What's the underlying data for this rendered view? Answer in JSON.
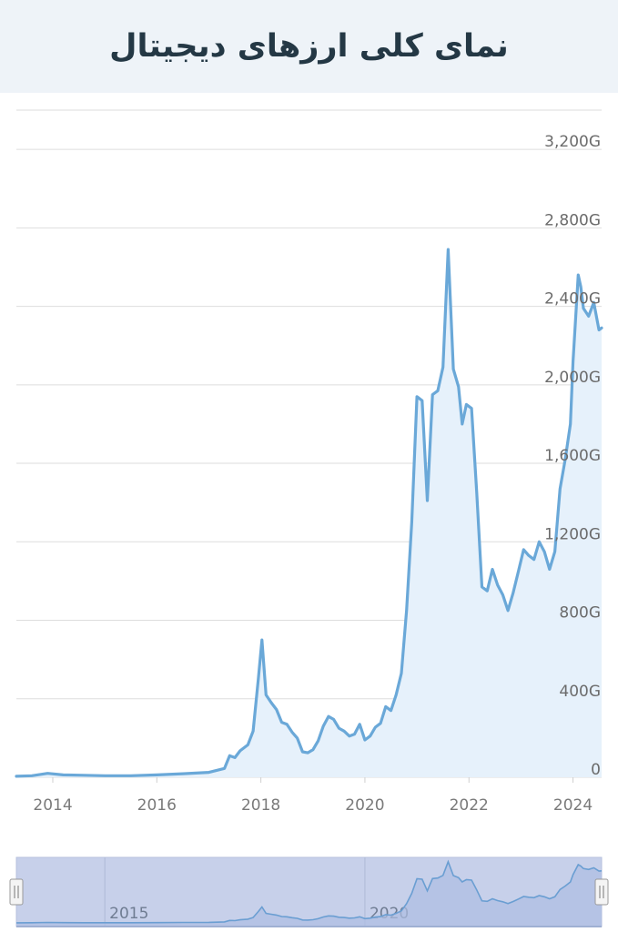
{
  "page": {
    "title": "نمای کلی ارزهای دیجیتال"
  },
  "colors": {
    "line": "#6aa8d8",
    "area": "#e6f1fb",
    "grid": "#dedede",
    "navigator_bg": "#c7d0ea",
    "navigator_line": "#6a9ed2"
  },
  "chart_data": {
    "type": "area",
    "title": "نمای کلی ارزهای دیجیتال",
    "xlabel": "",
    "ylabel": "",
    "x_range": [
      2013.3,
      2024.55
    ],
    "ylim": [
      0,
      3400
    ],
    "grid": true,
    "y_ticks": [
      {
        "value": 0,
        "label": "0"
      },
      {
        "value": 400,
        "label": "400G"
      },
      {
        "value": 800,
        "label": "800G"
      },
      {
        "value": 1200,
        "label": "1,200G"
      },
      {
        "value": 1600,
        "label": "1,600G"
      },
      {
        "value": 2000,
        "label": "2,000G"
      },
      {
        "value": 2400,
        "label": "2,400G"
      },
      {
        "value": 2800,
        "label": "2,800G"
      },
      {
        "value": 3200,
        "label": "3,200G"
      }
    ],
    "x_ticks": [
      {
        "value": 2014,
        "label": "2014"
      },
      {
        "value": 2016,
        "label": "2016"
      },
      {
        "value": 2018,
        "label": "2018"
      },
      {
        "value": 2020,
        "label": "2020"
      },
      {
        "value": 2022,
        "label": "2022"
      },
      {
        "value": 2024,
        "label": "2024"
      }
    ],
    "x": [
      2013.3,
      2013.6,
      2013.9,
      2014.2,
      2014.6,
      2015.0,
      2015.5,
      2016.0,
      2016.5,
      2017.0,
      2017.3,
      2017.4,
      2017.5,
      2017.6,
      2017.75,
      2017.85,
      2017.95,
      2018.02,
      2018.1,
      2018.2,
      2018.3,
      2018.4,
      2018.5,
      2018.6,
      2018.7,
      2018.8,
      2018.9,
      2019.0,
      2019.1,
      2019.2,
      2019.3,
      2019.4,
      2019.5,
      2019.6,
      2019.7,
      2019.8,
      2019.9,
      2020.0,
      2020.1,
      2020.2,
      2020.3,
      2020.4,
      2020.5,
      2020.6,
      2020.7,
      2020.8,
      2020.9,
      2021.0,
      2021.1,
      2021.2,
      2021.3,
      2021.4,
      2021.5,
      2021.6,
      2021.7,
      2021.8,
      2021.87,
      2021.95,
      2022.05,
      2022.15,
      2022.25,
      2022.35,
      2022.45,
      2022.55,
      2022.65,
      2022.75,
      2022.85,
      2022.95,
      2023.05,
      2023.15,
      2023.25,
      2023.35,
      2023.45,
      2023.55,
      2023.65,
      2023.75,
      2023.85,
      2023.95,
      2024.0,
      2024.1,
      2024.15,
      2024.2,
      2024.3,
      2024.4,
      2024.5,
      2024.55
    ],
    "values": [
      5,
      8,
      20,
      12,
      10,
      8,
      8,
      12,
      18,
      25,
      45,
      110,
      100,
      135,
      165,
      235,
      500,
      700,
      420,
      380,
      345,
      280,
      270,
      230,
      200,
      130,
      125,
      140,
      185,
      260,
      310,
      295,
      250,
      235,
      210,
      220,
      270,
      190,
      210,
      255,
      275,
      360,
      340,
      420,
      530,
      850,
      1300,
      1940,
      1920,
      1410,
      1950,
      1970,
      2090,
      2690,
      2080,
      1990,
      1800,
      1900,
      1880,
      1450,
      970,
      950,
      1060,
      980,
      930,
      850,
      940,
      1050,
      1160,
      1130,
      1110,
      1200,
      1150,
      1060,
      1150,
      1470,
      1620,
      1800,
      2120,
      2560,
      2500,
      2390,
      2350,
      2420,
      2280,
      2290
    ],
    "navigator": {
      "labels": [
        {
          "value": 2015,
          "label": "2015"
        },
        {
          "value": 2020,
          "label": "2020"
        }
      ]
    }
  }
}
